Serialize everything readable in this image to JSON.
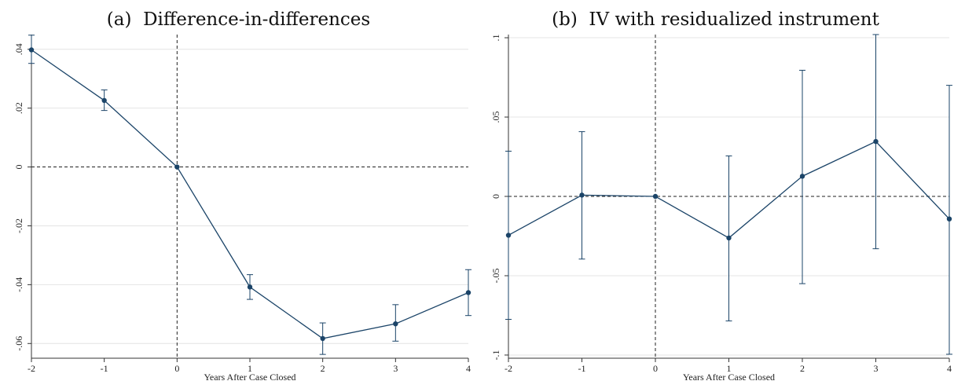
{
  "colors": {
    "series": "#1b4468",
    "grid": "#e4e4e4",
    "axis": "#333333",
    "reference_line": "#222222"
  },
  "panels": [
    {
      "title": "(a)  Difference-in-differences"
    },
    {
      "title": "(b)  IV with residualized instrument"
    }
  ],
  "chart_data": [
    {
      "type": "line",
      "title": "(a)  Difference-in-differences",
      "xlabel": "Years After Case Closed",
      "ylabel": "",
      "x": [
        -2,
        -1,
        0,
        1,
        2,
        3,
        4
      ],
      "xlim": [
        -2,
        4
      ],
      "ylim": [
        -0.065,
        0.045
      ],
      "xticks": [
        -2,
        -1,
        0,
        1,
        2,
        3,
        4
      ],
      "xtick_labels": [
        "-2",
        "-1",
        "0",
        "1",
        "2",
        "3",
        "4"
      ],
      "yticks": [
        -0.06,
        -0.04,
        -0.02,
        0,
        0.02,
        0.04
      ],
      "ytick_labels": [
        "-.06",
        "-.04",
        "-.02",
        "0",
        ".02",
        ".04"
      ],
      "grid": true,
      "reference_lines": {
        "x": 0,
        "y": 0
      },
      "series": [
        {
          "values": [
            0.0398,
            0.0226,
            0.0,
            -0.0408,
            -0.0583,
            -0.0533,
            -0.0427
          ],
          "ci_low": [
            0.0352,
            0.0192,
            0.0,
            -0.045,
            -0.0637,
            -0.0592,
            -0.0505
          ],
          "ci_high": [
            0.0448,
            0.0262,
            0.0,
            -0.0366,
            -0.053,
            -0.0468,
            -0.0349
          ]
        }
      ]
    },
    {
      "type": "line",
      "title": "(b)  IV with residualized instrument",
      "xlabel": "Years After Case Closed",
      "ylabel": "",
      "x": [
        -2,
        -1,
        0,
        1,
        2,
        3,
        4
      ],
      "xlim": [
        -2,
        4
      ],
      "ylim": [
        -0.102,
        0.102
      ],
      "xticks": [
        -2,
        -1,
        0,
        1,
        2,
        3,
        4
      ],
      "xtick_labels": [
        "-2",
        "-1",
        "0",
        "1",
        "2",
        "3",
        "4"
      ],
      "yticks": [
        -0.1,
        -0.05,
        0,
        0.05,
        0.1
      ],
      "ytick_labels": [
        "-.1",
        "-.05",
        "0",
        ".05",
        ".1"
      ],
      "grid": true,
      "reference_lines": {
        "x": 0,
        "y": 0
      },
      "series": [
        {
          "values": [
            -0.0245,
            0.0008,
            0.0,
            -0.0262,
            0.0127,
            0.0346,
            -0.0142
          ],
          "ci_low": [
            -0.0775,
            -0.0395,
            0.0,
            -0.0785,
            -0.055,
            -0.033,
            -0.0995
          ],
          "ci_high": [
            0.0285,
            0.0408,
            0.0,
            0.0255,
            0.0795,
            0.102,
            0.07
          ]
        }
      ]
    }
  ]
}
